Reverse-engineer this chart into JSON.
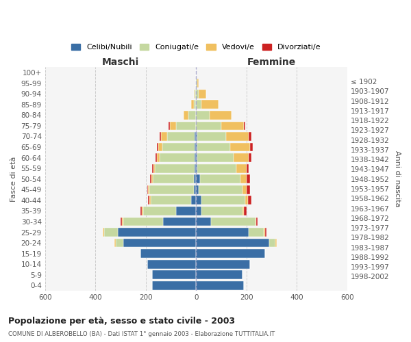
{
  "age_groups": [
    "0-4",
    "5-9",
    "10-14",
    "15-19",
    "20-24",
    "25-29",
    "30-34",
    "35-39",
    "40-44",
    "45-49",
    "50-54",
    "55-59",
    "60-64",
    "65-69",
    "70-74",
    "75-79",
    "80-84",
    "85-89",
    "90-94",
    "95-99",
    "100+"
  ],
  "birth_years": [
    "1998-2002",
    "1993-1997",
    "1988-1992",
    "1983-1987",
    "1978-1982",
    "1973-1977",
    "1968-1972",
    "1963-1967",
    "1958-1962",
    "1953-1957",
    "1948-1952",
    "1943-1947",
    "1938-1942",
    "1933-1937",
    "1928-1932",
    "1923-1927",
    "1918-1922",
    "1913-1917",
    "1908-1912",
    "1903-1907",
    "≤ 1902"
  ],
  "maschi": {
    "celibi": [
      175,
      175,
      195,
      220,
      290,
      310,
      130,
      80,
      20,
      10,
      8,
      5,
      5,
      5,
      5,
      0,
      0,
      0,
      0,
      0,
      0
    ],
    "coniugati": [
      0,
      0,
      0,
      0,
      30,
      55,
      160,
      130,
      160,
      175,
      165,
      160,
      140,
      130,
      110,
      80,
      30,
      10,
      5,
      0,
      0
    ],
    "vedovi": [
      0,
      0,
      0,
      0,
      5,
      5,
      5,
      5,
      5,
      5,
      5,
      5,
      10,
      15,
      25,
      25,
      20,
      10,
      5,
      0,
      0
    ],
    "divorziati": [
      0,
      0,
      0,
      0,
      0,
      0,
      5,
      5,
      5,
      5,
      5,
      5,
      5,
      5,
      5,
      5,
      0,
      0,
      0,
      0,
      0
    ]
  },
  "femmine": {
    "nubili": [
      190,
      185,
      215,
      275,
      290,
      210,
      60,
      20,
      20,
      10,
      15,
      5,
      5,
      5,
      5,
      0,
      0,
      0,
      0,
      0,
      0
    ],
    "coniugate": [
      0,
      0,
      0,
      0,
      25,
      60,
      175,
      165,
      175,
      175,
      160,
      155,
      145,
      130,
      115,
      100,
      55,
      20,
      10,
      5,
      0
    ],
    "vedove": [
      0,
      0,
      0,
      0,
      5,
      5,
      5,
      5,
      10,
      15,
      25,
      40,
      60,
      80,
      90,
      90,
      85,
      70,
      30,
      5,
      0
    ],
    "divorziate": [
      0,
      0,
      0,
      0,
      0,
      5,
      5,
      10,
      15,
      15,
      15,
      10,
      10,
      10,
      10,
      5,
      0,
      0,
      0,
      0,
      0
    ]
  },
  "colors": {
    "celibi": "#3a6ea5",
    "coniugati": "#c5d8a0",
    "vedovi": "#f0c060",
    "divorziati": "#cc2222"
  },
  "xlim": 600,
  "title": "Popolazione per età, sesso e stato civile - 2003",
  "subtitle": "COMUNE DI ALBEROBELLO (BA) - Dati ISTAT 1° gennaio 2003 - Elaborazione TUTTITALIA.IT",
  "ylabel": "Fasce di età",
  "ylabel2": "Anni di nascita",
  "legend_labels": [
    "Celibi/Nubili",
    "Coniugati/e",
    "Vedovi/e",
    "Divorziati/e"
  ]
}
